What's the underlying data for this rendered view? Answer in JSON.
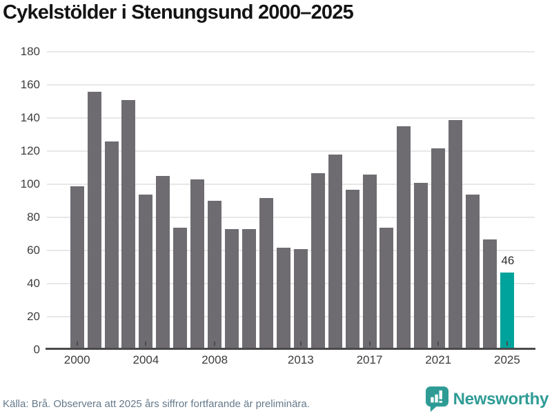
{
  "title": "Cykelstölder i Stenungsund 2000–2025",
  "chart_data": {
    "type": "bar",
    "title": "Cykelstölder i Stenungsund 2000–2025",
    "categories": [
      2000,
      2001,
      2002,
      2003,
      2004,
      2005,
      2006,
      2007,
      2008,
      2009,
      2010,
      2011,
      2012,
      2013,
      2014,
      2015,
      2016,
      2017,
      2018,
      2019,
      2020,
      2021,
      2022,
      2023,
      2024,
      2025
    ],
    "values": [
      98,
      155,
      125,
      150,
      93,
      104,
      73,
      102,
      89,
      72,
      72,
      91,
      61,
      60,
      106,
      117,
      96,
      105,
      73,
      134,
      100,
      121,
      138,
      93,
      66,
      46
    ],
    "xlabel": "",
    "ylabel": "",
    "ylim": [
      0,
      180
    ],
    "yticks": [
      0,
      20,
      40,
      60,
      80,
      100,
      120,
      140,
      160,
      180
    ],
    "xtick_years": [
      2000,
      2004,
      2008,
      2013,
      2017,
      2021,
      2025
    ],
    "grid": true,
    "legend": "none",
    "bar_color": "#6e6c71",
    "highlight_year": 2025,
    "highlight_color": "#00a39b",
    "highlight_value_label": "46"
  },
  "footer": {
    "source": "Källa: Brå. Observera att 2025 års siffror fortfarande är preliminära.",
    "brand": "Newsworthy"
  },
  "colors": {
    "bar_gray": "#6e6c71",
    "accent_teal": "#00a39b",
    "axis": "#4a4a4a",
    "gridline": "#e7e7e7",
    "brand_teal": "#2f9b95"
  }
}
